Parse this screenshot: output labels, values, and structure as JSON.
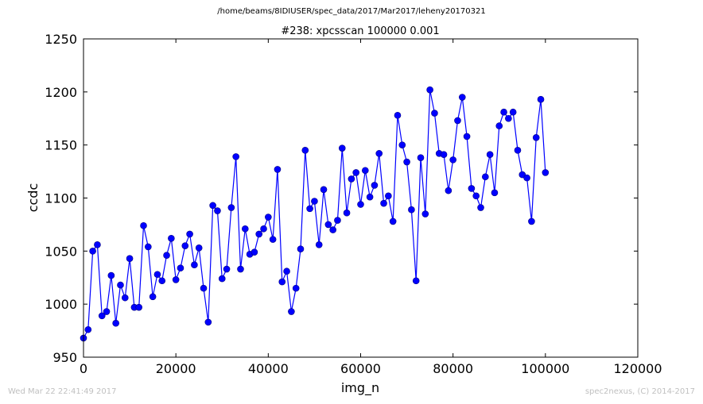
{
  "header": {
    "path": "/home/beams/8IDIUSER/spec_data/2017/Mar2017/leheny20170321"
  },
  "footer": {
    "timestamp": "Wed Mar 22 22:41:49 2017",
    "credit": "spec2nexus, (C) 2014-2017"
  },
  "colors": {
    "series": "#0000ff",
    "axes": "#000000",
    "footer": "#c0c0c0"
  },
  "chart_data": {
    "type": "line",
    "title": "#238: xpcsscan 100000 0.001",
    "xlabel": "img_n",
    "ylabel": "ccdc",
    "xlim": [
      0,
      120000
    ],
    "ylim": [
      950,
      1250
    ],
    "xticks": [
      0,
      20000,
      40000,
      60000,
      80000,
      100000,
      120000
    ],
    "yticks": [
      950,
      1000,
      1050,
      1100,
      1150,
      1200,
      1250
    ],
    "grid": false,
    "marker": "circle",
    "series": [
      {
        "x": [
          0,
          1000,
          2000,
          3000,
          4000,
          5000,
          6000,
          7000,
          8000,
          9000,
          10000,
          11000,
          12000,
          13000,
          14000,
          15000,
          16000,
          17000,
          18000,
          19000,
          20000,
          21000,
          22000,
          23000,
          24000,
          25000,
          26000,
          27000,
          28000,
          29000,
          30000,
          31000,
          32000,
          33000,
          34000,
          35000,
          36000,
          37000,
          38000,
          39000,
          40000,
          41000,
          42000,
          43000,
          44000,
          45000,
          46000,
          47000,
          48000,
          49000,
          50000,
          51000,
          52000,
          53000,
          54000,
          55000,
          56000,
          57000,
          58000,
          59000,
          60000,
          61000,
          62000,
          63000,
          64000,
          65000,
          66000,
          67000,
          68000,
          69000,
          70000,
          71000,
          72000,
          73000,
          74000,
          75000,
          76000,
          77000,
          78000,
          79000,
          80000,
          81000,
          82000,
          83000,
          84000,
          85000,
          86000,
          87000,
          88000,
          89000,
          90000,
          91000,
          92000,
          93000,
          94000,
          95000,
          96000,
          97000,
          98000,
          99000,
          100000
        ],
        "values": [
          968,
          976,
          1050,
          1056,
          989,
          993,
          1027,
          982,
          1018,
          1006,
          1043,
          997,
          997,
          1074,
          1054,
          1007,
          1028,
          1022,
          1046,
          1062,
          1023,
          1034,
          1055,
          1066,
          1037,
          1053,
          1015,
          983,
          1093,
          1088,
          1024,
          1033,
          1091,
          1139,
          1033,
          1071,
          1047,
          1049,
          1066,
          1071,
          1082,
          1061,
          1127,
          1021,
          1031,
          993,
          1015,
          1052,
          1145,
          1090,
          1097,
          1056,
          1108,
          1075,
          1070,
          1079,
          1147,
          1086,
          1118,
          1124,
          1094,
          1126,
          1101,
          1112,
          1142,
          1095,
          1102,
          1078,
          1178,
          1150,
          1134,
          1089,
          1022,
          1138,
          1085,
          1202,
          1180,
          1142,
          1141,
          1107,
          1136,
          1173,
          1195,
          1158,
          1109,
          1102,
          1091,
          1120,
          1141,
          1105,
          1168,
          1181,
          1175,
          1181,
          1145,
          1122,
          1119,
          1078,
          1157,
          1193,
          1124
        ]
      }
    ]
  }
}
